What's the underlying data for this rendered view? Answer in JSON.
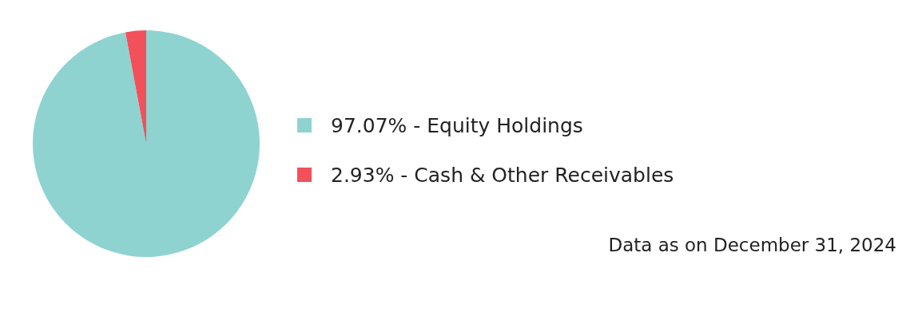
{
  "chart_data": {
    "type": "pie",
    "categories": [
      "Equity Holdings",
      "Cash & Other Receivables"
    ],
    "values": [
      97.07,
      2.93
    ],
    "colors": [
      "#8fd3d1",
      "#f2505b"
    ],
    "value_labels": [
      "97.07%",
      "2.93%"
    ],
    "legend": "right",
    "annotations": [
      "Data as on December 31, 2024"
    ]
  }
}
